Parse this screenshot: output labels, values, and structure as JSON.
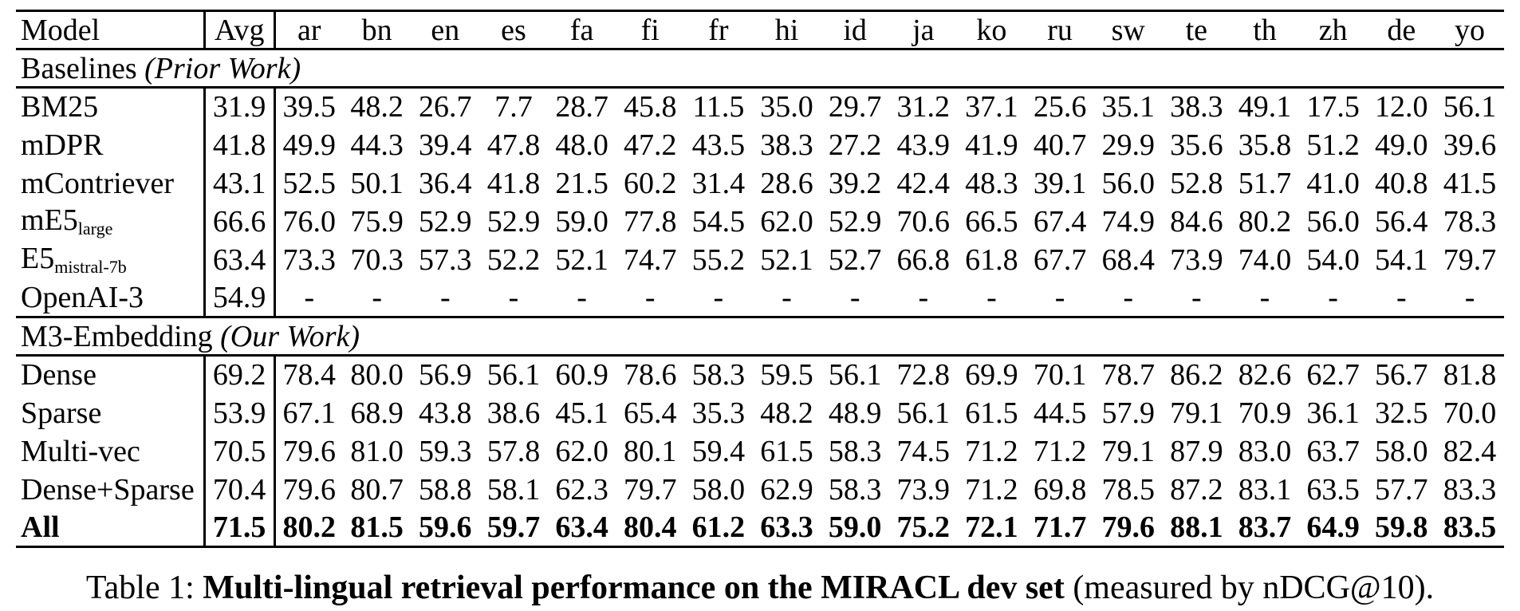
{
  "page": {
    "background_color": "#ffffff",
    "text_color": "#000000"
  },
  "table": {
    "columns": [
      "Model",
      "Avg",
      "ar",
      "bn",
      "en",
      "es",
      "fa",
      "fi",
      "fr",
      "hi",
      "id",
      "ja",
      "ko",
      "ru",
      "sw",
      "te",
      "th",
      "zh",
      "de",
      "yo"
    ],
    "sections": [
      {
        "header": {
          "pre": "Baselines ",
          "italic": "(Prior Work)",
          "post": ""
        },
        "rows": [
          {
            "model": "BM25",
            "sub": "",
            "bold": false,
            "avg": "31.9",
            "values": [
              "39.5",
              "48.2",
              "26.7",
              "7.7",
              "28.7",
              "45.8",
              "11.5",
              "35.0",
              "29.7",
              "31.2",
              "37.1",
              "25.6",
              "35.1",
              "38.3",
              "49.1",
              "17.5",
              "12.0",
              "56.1"
            ]
          },
          {
            "model": "mDPR",
            "sub": "",
            "bold": false,
            "avg": "41.8",
            "values": [
              "49.9",
              "44.3",
              "39.4",
              "47.8",
              "48.0",
              "47.2",
              "43.5",
              "38.3",
              "27.2",
              "43.9",
              "41.9",
              "40.7",
              "29.9",
              "35.6",
              "35.8",
              "51.2",
              "49.0",
              "39.6"
            ]
          },
          {
            "model": "mContriever",
            "sub": "",
            "bold": false,
            "avg": "43.1",
            "values": [
              "52.5",
              "50.1",
              "36.4",
              "41.8",
              "21.5",
              "60.2",
              "31.4",
              "28.6",
              "39.2",
              "42.4",
              "48.3",
              "39.1",
              "56.0",
              "52.8",
              "51.7",
              "41.0",
              "40.8",
              "41.5"
            ]
          },
          {
            "model": "mE5",
            "sub": "large",
            "bold": false,
            "avg": "66.6",
            "values": [
              "76.0",
              "75.9",
              "52.9",
              "52.9",
              "59.0",
              "77.8",
              "54.5",
              "62.0",
              "52.9",
              "70.6",
              "66.5",
              "67.4",
              "74.9",
              "84.6",
              "80.2",
              "56.0",
              "56.4",
              "78.3"
            ]
          },
          {
            "model": "E5",
            "sub": "mistral-7b",
            "bold": false,
            "avg": "63.4",
            "values": [
              "73.3",
              "70.3",
              "57.3",
              "52.2",
              "52.1",
              "74.7",
              "55.2",
              "52.1",
              "52.7",
              "66.8",
              "61.8",
              "67.7",
              "68.4",
              "73.9",
              "74.0",
              "54.0",
              "54.1",
              "79.7"
            ]
          },
          {
            "model": "OpenAI-3",
            "sub": "",
            "bold": false,
            "avg": "54.9",
            "values": [
              "-",
              "-",
              "-",
              "-",
              "-",
              "-",
              "-",
              "-",
              "-",
              "-",
              "-",
              "-",
              "-",
              "-",
              "-",
              "-",
              "-",
              "-"
            ]
          }
        ]
      },
      {
        "header": {
          "pre": "M3-Embedding ",
          "italic": "(Our Work)",
          "post": ""
        },
        "rows": [
          {
            "model": "Dense",
            "sub": "",
            "bold": false,
            "avg": "69.2",
            "values": [
              "78.4",
              "80.0",
              "56.9",
              "56.1",
              "60.9",
              "78.6",
              "58.3",
              "59.5",
              "56.1",
              "72.8",
              "69.9",
              "70.1",
              "78.7",
              "86.2",
              "82.6",
              "62.7",
              "56.7",
              "81.8"
            ]
          },
          {
            "model": "Sparse",
            "sub": "",
            "bold": false,
            "avg": "53.9",
            "values": [
              "67.1",
              "68.9",
              "43.8",
              "38.6",
              "45.1",
              "65.4",
              "35.3",
              "48.2",
              "48.9",
              "56.1",
              "61.5",
              "44.5",
              "57.9",
              "79.1",
              "70.9",
              "36.1",
              "32.5",
              "70.0"
            ]
          },
          {
            "model": "Multi-vec",
            "sub": "",
            "bold": false,
            "avg": "70.5",
            "values": [
              "79.6",
              "81.0",
              "59.3",
              "57.8",
              "62.0",
              "80.1",
              "59.4",
              "61.5",
              "58.3",
              "74.5",
              "71.2",
              "71.2",
              "79.1",
              "87.9",
              "83.0",
              "63.7",
              "58.0",
              "82.4"
            ]
          },
          {
            "model": "Dense+Sparse",
            "sub": "",
            "bold": false,
            "avg": "70.4",
            "values": [
              "79.6",
              "80.7",
              "58.8",
              "58.1",
              "62.3",
              "79.7",
              "58.0",
              "62.9",
              "58.3",
              "73.9",
              "71.2",
              "69.8",
              "78.5",
              "87.2",
              "83.1",
              "63.5",
              "57.7",
              "83.3"
            ]
          },
          {
            "model": "All",
            "sub": "",
            "bold": true,
            "avg": "71.5",
            "values": [
              "80.2",
              "81.5",
              "59.6",
              "59.7",
              "63.4",
              "80.4",
              "61.2",
              "63.3",
              "59.0",
              "75.2",
              "72.1",
              "71.7",
              "79.6",
              "88.1",
              "83.7",
              "64.9",
              "59.8",
              "83.5"
            ]
          }
        ]
      }
    ]
  },
  "caption": {
    "prefix": "Table 1: ",
    "bold": "Multi-lingual retrieval performance on the MIRACL dev set",
    "suffix": " (measured by nDCG@10)."
  }
}
